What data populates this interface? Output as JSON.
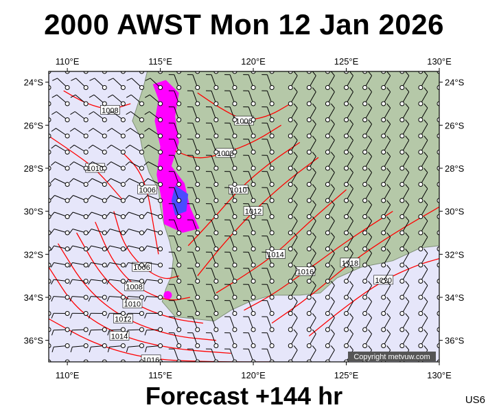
{
  "header": {
    "title": "2000 AWST Mon 12 Jan 2026"
  },
  "footer": {
    "label": "Forecast +144 hr",
    "code": "US6"
  },
  "copyright": "Copyright metvuw.com",
  "map": {
    "lon_range": [
      109,
      130
    ],
    "lat_range": [
      -37,
      -23.5
    ],
    "colors": {
      "ocean": "#e6e6fa",
      "land": "#b5c8a8",
      "isobar": "#ff0000",
      "rain_light": "#ff00ff",
      "rain_heavy": "#4b4bff",
      "barb": "#000000"
    },
    "lon_ticks": [
      {
        "value": 110,
        "label": "110°E"
      },
      {
        "value": 115,
        "label": "115°E"
      },
      {
        "value": 120,
        "label": "120°E"
      },
      {
        "value": 125,
        "label": "125°E"
      },
      {
        "value": 130,
        "label": "130°E"
      }
    ],
    "lat_ticks": [
      {
        "value": -24,
        "label": "24°S"
      },
      {
        "value": -26,
        "label": "26°S"
      },
      {
        "value": -28,
        "label": "28°S"
      },
      {
        "value": -30,
        "label": "30°S"
      },
      {
        "value": -32,
        "label": "32°S"
      },
      {
        "value": -34,
        "label": "34°S"
      },
      {
        "value": -36,
        "label": "36°S"
      }
    ],
    "coastline": [
      [
        114.3,
        -23.5
      ],
      [
        114.1,
        -24.2
      ],
      [
        113.8,
        -25.0
      ],
      [
        113.5,
        -25.8
      ],
      [
        113.9,
        -26.5
      ],
      [
        114.1,
        -27.4
      ],
      [
        114.4,
        -28.2
      ],
      [
        114.9,
        -29.0
      ],
      [
        115.0,
        -29.8
      ],
      [
        115.2,
        -30.6
      ],
      [
        115.5,
        -31.4
      ],
      [
        115.7,
        -32.2
      ],
      [
        115.6,
        -33.0
      ],
      [
        115.3,
        -33.6
      ],
      [
        115.1,
        -34.2
      ],
      [
        115.8,
        -34.9
      ],
      [
        116.8,
        -35.0
      ],
      [
        117.9,
        -35.1
      ],
      [
        118.8,
        -34.6
      ],
      [
        119.8,
        -34.2
      ],
      [
        121.0,
        -33.9
      ],
      [
        122.5,
        -33.9
      ],
      [
        123.6,
        -33.8
      ],
      [
        124.5,
        -33.1
      ],
      [
        125.8,
        -32.6
      ],
      [
        127.5,
        -32.3
      ],
      [
        129.0,
        -31.7
      ],
      [
        130.0,
        -31.6
      ],
      [
        130.0,
        -23.5
      ]
    ],
    "rain_light": [
      [
        114.6,
        -24.1
      ],
      [
        115.3,
        -23.9
      ],
      [
        116.0,
        -24.5
      ],
      [
        115.8,
        -25.6
      ],
      [
        116.0,
        -26.8
      ],
      [
        115.6,
        -27.9
      ],
      [
        116.3,
        -28.7
      ],
      [
        116.6,
        -29.8
      ],
      [
        117.1,
        -30.8
      ],
      [
        116.2,
        -31.0
      ],
      [
        115.2,
        -30.6
      ],
      [
        115.1,
        -29.6
      ],
      [
        114.8,
        -28.3
      ],
      [
        115.0,
        -27.0
      ],
      [
        114.7,
        -25.8
      ],
      [
        114.9,
        -24.8
      ]
    ],
    "rain_heavy": [
      [
        115.8,
        -28.8
      ],
      [
        116.5,
        -29.2
      ],
      [
        116.4,
        -30.0
      ],
      [
        115.8,
        -30.2
      ],
      [
        115.6,
        -29.5
      ]
    ],
    "rain_spot": [
      115.4,
      -33.9
    ],
    "isobars": [
      {
        "label": "1008",
        "x": [
          109.8,
          111.0,
          112.3,
          113.4
        ],
        "y": [
          -24.4,
          -25.0,
          -25.3,
          -25.0
        ]
      },
      {
        "label": "1010",
        "x": [
          109.0,
          110.2,
          111.5,
          113.0
        ],
        "y": [
          -26.5,
          -27.2,
          -28.0,
          -29.5
        ]
      },
      {
        "label": "1006",
        "x": [
          113.0,
          113.8,
          114.3,
          114.6,
          114.9
        ],
        "y": [
          -27.3,
          -28.0,
          -29.0,
          -30.5,
          -32.0
        ]
      },
      {
        "label": "1006",
        "x": [
          112.5,
          113.0,
          114.0,
          115.2,
          116.0
        ],
        "y": [
          -30.0,
          -31.5,
          -32.6,
          -33.2,
          -33.0
        ]
      },
      {
        "label": "1008",
        "x": [
          111.5,
          112.4,
          113.6,
          115.4,
          116.6
        ],
        "y": [
          -30.5,
          -32.3,
          -33.5,
          -34.2,
          -34.0
        ]
      },
      {
        "label": "1010",
        "x": [
          110.5,
          111.8,
          113.5,
          115.6,
          117.3
        ],
        "y": [
          -31.0,
          -33.0,
          -34.3,
          -35.0,
          -35.2
        ]
      },
      {
        "label": "1012",
        "x": [
          109.5,
          111.0,
          113.0,
          115.6,
          118.0
        ],
        "y": [
          -31.5,
          -33.6,
          -35.0,
          -35.8,
          -36.0
        ]
      },
      {
        "label": "1014",
        "x": [
          109.0,
          110.5,
          112.8,
          115.6,
          118.8
        ],
        "y": [
          -32.6,
          -34.6,
          -35.8,
          -36.4,
          -36.6
        ]
      },
      {
        "label": "1016",
        "x": [
          109.0,
          111.5,
          114.5,
          118.0,
          121.0
        ],
        "y": [
          -35.0,
          -36.2,
          -36.9,
          -37.0,
          -37.0
        ]
      },
      {
        "label": "1006",
        "x": [
          117.0,
          118.2,
          119.5,
          120.8,
          122.0
        ],
        "y": [
          -24.5,
          -25.2,
          -25.8,
          -25.6,
          -25.0
        ]
      },
      {
        "label": "1008",
        "x": [
          115.8,
          117.0,
          118.5,
          120.0,
          121.5
        ],
        "y": [
          -27.2,
          -27.6,
          -27.3,
          -26.8,
          -26.0
        ]
      },
      {
        "label": "1010",
        "x": [
          116.5,
          117.8,
          119.2,
          120.8,
          122.5
        ],
        "y": [
          -31.6,
          -30.4,
          -29.0,
          -27.8,
          -26.8
        ]
      },
      {
        "label": "1012",
        "x": [
          117.0,
          118.4,
          120.0,
          121.8,
          123.5
        ],
        "y": [
          -33.0,
          -31.5,
          -30.0,
          -28.6,
          -27.5
        ]
      },
      {
        "label": "1014",
        "x": [
          118.0,
          119.5,
          121.2,
          123.0,
          125.0
        ],
        "y": [
          -33.8,
          -33.0,
          -32.0,
          -30.5,
          -29.0
        ]
      },
      {
        "label": "1016",
        "x": [
          119.5,
          121.0,
          122.8,
          125.0,
          127.5
        ],
        "y": [
          -34.6,
          -33.9,
          -32.8,
          -31.4,
          -30.0
        ]
      },
      {
        "label": "1018",
        "x": [
          121.0,
          123.0,
          125.2,
          127.6,
          130.0
        ],
        "y": [
          -35.2,
          -34.0,
          -32.4,
          -31.0,
          -29.8
        ]
      },
      {
        "label": "1020",
        "x": [
          123.0,
          125.0,
          127.0,
          128.8,
          130.0
        ],
        "y": [
          -35.8,
          -34.4,
          -33.2,
          -32.5,
          -32.2
        ]
      }
    ]
  }
}
